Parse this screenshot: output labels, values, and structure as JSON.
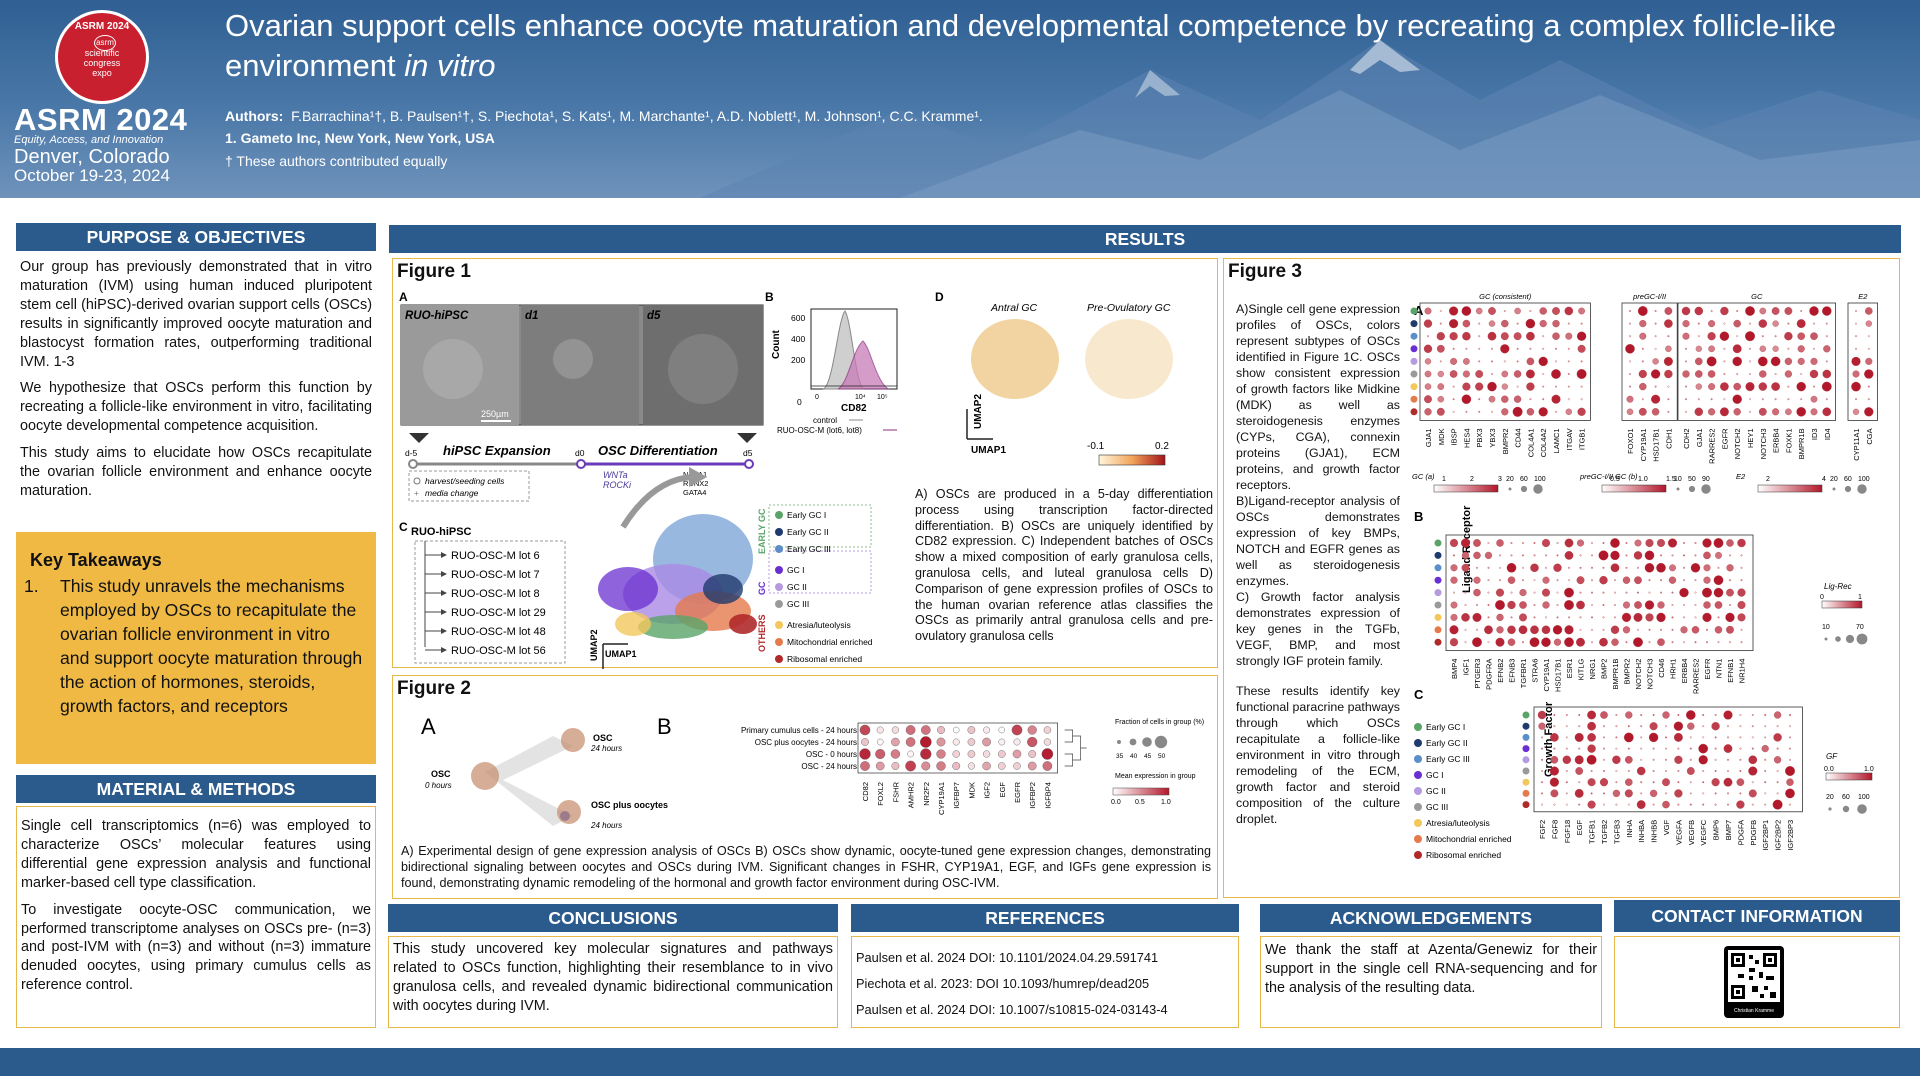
{
  "header": {
    "badge_year": "ASRM 2024",
    "badge_logo": "asrm",
    "badge_line1": "scientific",
    "badge_line2": "congress",
    "badge_line3": "expo",
    "brand": "ASRM 2024",
    "tagline": "Equity, Access, and Innovation",
    "city": "Denver, Colorado",
    "dates": "October 19-23, 2024",
    "title_main": "Ovarian support cells enhance oocyte maturation and developmental competence by recreating a complex follicle-like environment ",
    "title_italic": "in vitro",
    "authors_label": "Authors:",
    "authors": "F.Barrachina¹†, B. Paulsen¹†, S. Piechota¹, S. Kats¹, M. Marchante¹, A.D. Noblett¹, M. Johnson¹, C.C. Kramme¹.",
    "affiliation": "1. Gameto Inc, New York, New York, USA",
    "contribution": "† These authors contributed equally"
  },
  "sections": {
    "purpose": "PURPOSE & OBJECTIVES",
    "results": "RESULTS",
    "methods": "MATERIAL & METHODS",
    "conclusions": "CONCLUSIONS",
    "references": "REFERENCES",
    "acknowledgements": "ACKNOWLEDGEMENTS",
    "contact": "CONTACT INFORMATION"
  },
  "purpose": {
    "p1": "Our group has previously demonstrated that in vitro maturation (IVM) using human induced pluripotent stem cell (hiPSC)-derived ovarian support cells (OSCs) results in significantly improved oocyte maturation and blastocyst formation rates, outperforming traditional IVM. 1-3",
    "p2": "We hypothesize that OSCs perform this function by recreating a follicle-like environment in vitro, facilitating oocyte developmental competence acquisition.",
    "p3": "This study aims to elucidate how OSCs recapitulate the ovarian follicle environment and enhance oocyte maturation."
  },
  "takeaways": {
    "heading": "Key Takeaways",
    "num": "1.",
    "text": "This study unravels the mechanisms employed by OSCs to recapitulate the ovarian follicle environment in vitro and support oocyte maturation through the action of hormones, steroids, growth factors, and receptors"
  },
  "methods": {
    "p1": "Single cell transcriptomics (n=6) was employed to characterize OSCs’ molecular features using differential gene expression analysis and functional marker-based cell type classification.",
    "p2": "To investigate oocyte-OSC communication, we performed transcriptome analyses on OSCs pre- (n=3) and post-IVM with (n=3) and without (n=3) immature denuded oocytes, using primary cumulus cells as reference control."
  },
  "figure1": {
    "title": "Figure 1",
    "panel_a": "A",
    "panel_b": "B",
    "panel_c": "C",
    "panel_d": "D",
    "img_labels": [
      "RUO-hiPSC",
      "d1",
      "d5"
    ],
    "scale": "250µm",
    "stage1": "hiPSC Expansion",
    "stage2": "OSC Differentiation",
    "timepoints": [
      "d-5",
      "d0",
      "d5"
    ],
    "wnt": "WNTa",
    "rock": "ROCKi",
    "tfs": [
      "NR5A1",
      "RUNX2",
      "GATA4"
    ],
    "legend_harvest": "harvest/seeding cells",
    "legend_media": "media change",
    "c_root": "RUO-hiPSC",
    "lots": [
      "RUO-OSC-M lot 6",
      "RUO-OSC-M lot 7",
      "RUO-OSC-M lot 8",
      "RUO-OSC-M lot 29",
      "RUO-OSC-M lot 48",
      "RUO-OSC-M lot 56"
    ],
    "b_ylabel": "Count",
    "b_xlabel": "CD82",
    "b_yticks": [
      "600",
      "400",
      "200",
      "0"
    ],
    "b_xticks": [
      "0",
      "10⁴",
      "10⁵"
    ],
    "b_leg1": "control",
    "b_leg2": "RUO-OSC-M (lot6, lot8)",
    "umap1": "UMAP1",
    "umap2": "UMAP2",
    "group_early": "EARLY GC",
    "group_gc": "GC",
    "group_others": "OTHERS",
    "clusters": [
      {
        "label": "Early GC I",
        "color": "#5aa469"
      },
      {
        "label": "Early GC II",
        "color": "#1f3a6d"
      },
      {
        "label": "Early GC III",
        "color": "#5b8fc9"
      },
      {
        "label": "GC I",
        "color": "#6a2fd0"
      },
      {
        "label": "GC II",
        "color": "#b59ae0"
      },
      {
        "label": "GC III",
        "color": "#9a9a9a"
      },
      {
        "label": "Atresia/luteolysis",
        "color": "#f2c75c"
      },
      {
        "label": "Mitochondrial enriched",
        "color": "#e57b4c"
      },
      {
        "label": "Ribosomal enriched",
        "color": "#b02a2a"
      }
    ],
    "d_title1": "Antral GC",
    "d_title2": "Pre-Ovulatory GC",
    "d_scale_min": "-0.1",
    "d_scale_max": "0.2",
    "caption": "A) OSCs are produced in a 5-day differentiation process using transcription factor-directed differentiation. B) OSCs are uniquely identified by CD82 expression. C) Independent batches of OSCs show a mixed composition of early granulosa cells, granulosa cells, and luteal granulosa cells D) Comparison of gene expression profiles of OSCs to the human ovarian reference atlas classifies the OSCs as primarily antral granulosa cells and pre-ovulatory granulosa cells"
  },
  "figure2": {
    "title": "Figure 2",
    "panel_a": "A",
    "panel_b": "B",
    "osc": "OSC",
    "osc_time": "0 hours",
    "osc24": "OSC",
    "osc24_time": "24 hours",
    "oscplus": "OSC plus oocytes",
    "oscplus_time": "24 hours",
    "rows": [
      "Primary cumulus cells - 24 hours",
      "OSC plus oocytes - 24 hours",
      "OSC - 0 hours",
      "OSC - 24 hours"
    ],
    "genes": [
      "CD82",
      "FOXL2",
      "FSHR",
      "AMHR2",
      "NR2F2",
      "CYP19A1",
      "IGFBP7",
      "MDK",
      "IGF2",
      "EGF",
      "EGFR",
      "IGFBP2",
      "IGFBP4"
    ],
    "frac_label": "Fraction of cells in group (%)",
    "frac_ticks": [
      "35",
      "40",
      "45",
      "50"
    ],
    "mean_label": "Mean expression in group",
    "mean_ticks": [
      "0.0",
      "0.5",
      "1.0"
    ],
    "caption": "A) Experimental design of gene expression analysis of OSCs B) OSCs show dynamic, oocyte-tuned gene expression changes, demonstrating bidirectional signaling between oocytes and OSCs during IVM. Significant changes in FSHR, CYP19A1, EGF, and IGFs gene expression is found, demonstrating dynamic remodeling of the hormonal and growth factor environment during OSC-IVM."
  },
  "figure3": {
    "title": "Figure 3",
    "text1": "A)Single cell gene expression profiles of OSCs, colors represent subtypes of OSCs identified in Figure 1C. OSCs show consistent expression of growth factors like Midkine (MDK) as well as steroidogenesis enzymes (CYPs, CGA), connexin proteins (GJA1), ECM proteins, and growth factor receptors.",
    "text2": "B)Ligand-receptor analysis of OSCs demonstrates expression of key BMPs, NOTCH and EGFR genes as well as steroidogenesis enzymes.",
    "text3": "C) Growth factor analysis demonstrates expression of key genes in the TGFb, VEGF, BMP, and most strongly IGF protein family.",
    "text4": "These results identify key functional paracrine pathways through which OSCs recapitulate a follicle-like environment in vitro through remodeling of the ECM, growth factor and steroid composition of the culture droplet.",
    "panel_a": "A",
    "panel_b": "B",
    "panel_c": "C",
    "a_groups": [
      "GC (consistent)",
      "preGC-I/II",
      "GC",
      "E2"
    ],
    "a_genes1": [
      "GJA1",
      "MDK",
      "IBSP",
      "HES4",
      "PBX3",
      "YBX3",
      "BMPR2",
      "CD44",
      "COL4A1",
      "COL4A2",
      "LAMC1",
      "ITGAV",
      "ITGB1"
    ],
    "a_genes2": [
      "FOXO1",
      "CYP19A1",
      "HSD17B1",
      "CDH1"
    ],
    "a_genes3": [
      "CDH2",
      "GJA1",
      "RARRES2",
      "EGFR",
      "NOTCH2",
      "HEY1",
      "NOTCH3",
      "ERBB4",
      "FOXK1",
      "BMPR1B",
      "ID3",
      "ID4"
    ],
    "a_genes4": [
      "CYP11A1",
      "CGA"
    ],
    "a_leg1": "GC (a)",
    "a_leg1_ticks": [
      "1",
      "2",
      "3"
    ],
    "a_leg1_sizes": [
      "20",
      "60",
      "100"
    ],
    "a_leg2": "preGC-I/II GC (b)",
    "a_leg2_ticks": [
      "0.5",
      "1.0",
      "1.5"
    ],
    "a_leg2_sizes": [
      "10",
      "50",
      "90"
    ],
    "a_leg3": "E2",
    "a_leg3_ticks": [
      "2",
      "4"
    ],
    "a_leg3_sizes": [
      "20",
      "60",
      "100"
    ],
    "b_ylabel": "Ligand-Receptor",
    "b_genes": [
      "BMP4",
      "IGF1",
      "PTGER3",
      "PDGFRA",
      "EFNB2",
      "EFNB3",
      "TGFBR1",
      "STRA6",
      "CYP19A1",
      "HSD17B1",
      "ESR1",
      "KITLG",
      "NRG1",
      "BMP2",
      "BMPR1B",
      "BMPR2",
      "NOTCH2",
      "NOTCH3",
      "CD46",
      "HRH1",
      "ERBB4",
      "RARRES2",
      "EGFR",
      "NTN1",
      "EFNB1",
      "NR1H4"
    ],
    "b_leg": "Lig-Rec",
    "b_leg_ticks": [
      "0",
      "1"
    ],
    "b_leg_sizes": [
      "10",
      "70"
    ],
    "c_ylabel": "Growth Factor",
    "c_genes": [
      "FGF2",
      "FGF8",
      "FGF18",
      "EGF",
      "TGFB1",
      "TGFB2",
      "TGFB3",
      "INHA",
      "INHBA",
      "INHBB",
      "VGF",
      "VEGFA",
      "VEGFB",
      "VEGFC",
      "BMP6",
      "BMP7",
      "PDGFA",
      "PDGFB",
      "IGF2BP1",
      "IGF2BP2",
      "IGF2BP3"
    ],
    "c_leg": "GF",
    "c_leg_ticks": [
      "0.0",
      "1.0"
    ],
    "c_leg_sizes": [
      "20",
      "60",
      "100"
    ]
  },
  "conclusions": "This study uncovered key molecular signatures and pathways related to OSCs function, highlighting their resemblance to in vivo granulosa cells, and revealed dynamic bidirectional communication with oocytes during IVM.",
  "references": [
    "Paulsen et al. 2024 DOI: 10.1101/2024.04.29.591741",
    "Piechota et al. 2023: DOI 10.1093/humrep/dead205",
    "Paulsen et al. 2024 DOI: 10.1007/s10815-024-03143-4"
  ],
  "acknowledgements": "We thank the staff at Azenta/Genewiz for their support in the single cell RNA-sequencing and for the analysis of the resulting data.",
  "contact": {
    "qr_caption": "Christian Kramme"
  }
}
